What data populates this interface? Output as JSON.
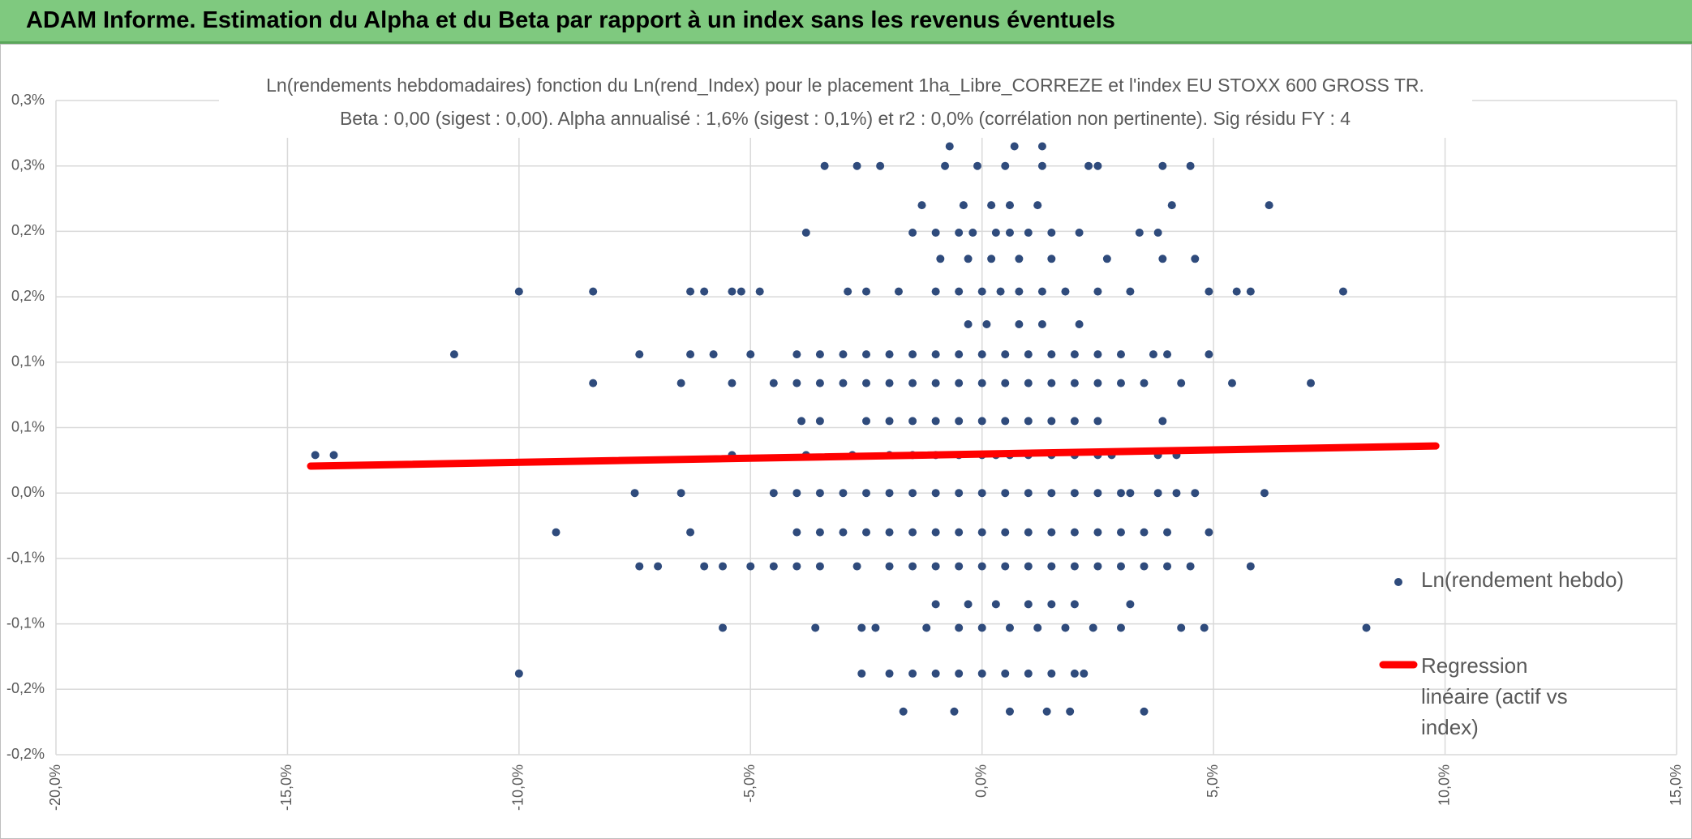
{
  "header": {
    "title": "ADAM Informe. Estimation du Alpha et du Beta par rapport à un index sans les revenus éventuels"
  },
  "chart_data": {
    "type": "scatter",
    "title": "Ln(rendements hebdomadaires) fonction du Ln(rend_Index) pour le placement 1ha_Libre_CORREZE et l'index EU STOXX 600 GROSS TR.",
    "subtitle": "Beta : 0,00 (sigest : 0,00). Alpha annualisé : 1,6% (sigest : 0,1%) et r2 : 0,0% (corrélation non pertinente). Sig résidu FY : 4",
    "xlim": [
      -20,
      15
    ],
    "xticks": [
      {
        "value": -20,
        "label": "-20,0%"
      },
      {
        "value": -15,
        "label": "-15,0%"
      },
      {
        "value": -10,
        "label": "-10,0%"
      },
      {
        "value": -5,
        "label": "-5,0%"
      },
      {
        "value": 0,
        "label": "0,0%"
      },
      {
        "value": 5,
        "label": "5,0%"
      },
      {
        "value": 10,
        "label": "10,0%"
      },
      {
        "value": 15,
        "label": "15,0%"
      }
    ],
    "ylim": [
      -0.2,
      0.3
    ],
    "yticks": [
      {
        "value": 0.3,
        "label": "0,3%"
      },
      {
        "value": 0.25,
        "label": "0,3%"
      },
      {
        "value": 0.2,
        "label": "0,2%"
      },
      {
        "value": 0.15,
        "label": "0,2%"
      },
      {
        "value": 0.1,
        "label": "0,1%"
      },
      {
        "value": 0.05,
        "label": "0,1%"
      },
      {
        "value": 0,
        "label": "0,0%"
      },
      {
        "value": -0.05,
        "label": "-0,1%"
      },
      {
        "value": -0.1,
        "label": "-0,1%"
      },
      {
        "value": -0.15,
        "label": "-0,2%"
      },
      {
        "value": -0.2,
        "label": "-0,2%"
      }
    ],
    "grid": true,
    "legend": "right",
    "series": [
      {
        "name": "Ln(rendement hebdo)",
        "color": "#2f4b7c",
        "type": "scatter",
        "x": [
          -7.5,
          -6.5,
          -4.5,
          -4,
          -3.5,
          -3,
          -2.5,
          -2,
          -1.5,
          -1,
          -0.5,
          0,
          0.5,
          1,
          1.5,
          2,
          2.5,
          3,
          3.2,
          3.8,
          4.2,
          4.6,
          6.1,
          -14.4,
          -14,
          -5.4,
          -3.8,
          -2.8,
          -2,
          -1.5,
          -1,
          -0.5,
          0,
          0.3,
          0.6,
          1,
          1.5,
          2,
          2.5,
          2.8,
          3.8,
          4.2,
          -9.2,
          -6.3,
          -4,
          -3.5,
          -3,
          -2.5,
          -2,
          -1.5,
          -1,
          -0.5,
          0,
          0.5,
          1,
          1.5,
          2,
          2.5,
          3,
          3.5,
          4,
          4.9,
          -3.9,
          -3.5,
          -2.5,
          -2,
          -1.5,
          -1,
          -0.5,
          0,
          0.5,
          1,
          1.5,
          2,
          2.5,
          3.9,
          -8.4,
          -6.5,
          -5.4,
          -4.5,
          -4,
          -3.5,
          -3,
          -2.5,
          -2,
          -1.5,
          -1,
          -0.5,
          0,
          0.5,
          1,
          1.5,
          2,
          2.5,
          3,
          3.5,
          4.3,
          5.4,
          7.1,
          -7.4,
          -7,
          -6,
          -5.6,
          -5,
          -4.5,
          -4,
          -3.5,
          -2.7,
          -2,
          -1.5,
          -1,
          -0.5,
          0,
          0.5,
          1,
          1.5,
          2,
          2.5,
          3,
          3.5,
          4,
          4.5,
          5.8,
          -11.4,
          -7.4,
          -6.3,
          -5.8,
          -5,
          -4,
          -3.5,
          -3,
          -2.5,
          -2,
          -1.5,
          -1,
          -0.5,
          0,
          0.5,
          1,
          1.5,
          2,
          2.5,
          3,
          3.7,
          4,
          4.9,
          -1,
          -0.3,
          0.3,
          1,
          1.5,
          2,
          3.2,
          -0.3,
          0.1,
          0.8,
          1.3,
          2.1,
          -5.6,
          -3.6,
          -2.6,
          -2.3,
          -1.2,
          -0.5,
          0,
          0.6,
          1.2,
          1.8,
          2.4,
          3,
          4.3,
          4.8,
          8.3,
          -10,
          -8.4,
          -6.3,
          -6,
          -5.4,
          -5.2,
          -4.8,
          -2.9,
          -2.5,
          -1.8,
          -1,
          -0.5,
          0,
          0.4,
          0.8,
          1.3,
          1.8,
          2.5,
          3.2,
          4.9,
          5.5,
          5.8,
          7.8,
          -10,
          -2.6,
          -2,
          -1.5,
          -1,
          -0.5,
          0,
          0.5,
          1,
          1.5,
          2,
          2.2,
          -0.9,
          -0.3,
          0.2,
          0.8,
          1.5,
          2.7,
          3.9,
          4.6,
          -3.8,
          -1.5,
          -1,
          -0.5,
          -0.2,
          0.3,
          0.6,
          1,
          1.5,
          2.1,
          3.4,
          3.8,
          -1.3,
          -0.4,
          0.2,
          0.6,
          1.2,
          4.1,
          6.2,
          -3.4,
          -2.7,
          -2.2,
          -0.8,
          -0.1,
          0.5,
          1.3,
          2.3,
          2.5,
          3.9,
          4.5,
          -0.7,
          0.7,
          1.3,
          -1.7,
          -0.6,
          0.6,
          1.4,
          1.9,
          3.5
        ],
        "values": [
          0,
          0,
          0,
          0,
          0,
          0,
          0,
          0,
          0,
          0,
          0,
          0,
          0,
          0,
          0,
          0,
          0,
          0,
          0,
          0,
          0,
          0,
          0,
          0.029,
          0.029,
          0.029,
          0.029,
          0.029,
          0.029,
          0.029,
          0.029,
          0.029,
          0.029,
          0.029,
          0.029,
          0.029,
          0.029,
          0.029,
          0.029,
          0.029,
          0.029,
          0.029,
          -0.03,
          -0.03,
          -0.03,
          -0.03,
          -0.03,
          -0.03,
          -0.03,
          -0.03,
          -0.03,
          -0.03,
          -0.03,
          -0.03,
          -0.03,
          -0.03,
          -0.03,
          -0.03,
          -0.03,
          -0.03,
          -0.03,
          -0.03,
          0.055,
          0.055,
          0.055,
          0.055,
          0.055,
          0.055,
          0.055,
          0.055,
          0.055,
          0.055,
          0.055,
          0.055,
          0.055,
          0.055,
          0.084,
          0.084,
          0.084,
          0.084,
          0.084,
          0.084,
          0.084,
          0.084,
          0.084,
          0.084,
          0.084,
          0.084,
          0.084,
          0.084,
          0.084,
          0.084,
          0.084,
          0.084,
          0.084,
          0.084,
          0.084,
          0.084,
          0.084,
          -0.056,
          -0.056,
          -0.056,
          -0.056,
          -0.056,
          -0.056,
          -0.056,
          -0.056,
          -0.056,
          -0.056,
          -0.056,
          -0.056,
          -0.056,
          -0.056,
          -0.056,
          -0.056,
          -0.056,
          -0.056,
          -0.056,
          -0.056,
          -0.056,
          -0.056,
          -0.056,
          -0.056,
          0.106,
          0.106,
          0.106,
          0.106,
          0.106,
          0.106,
          0.106,
          0.106,
          0.106,
          0.106,
          0.106,
          0.106,
          0.106,
          0.106,
          0.106,
          0.106,
          0.106,
          0.106,
          0.106,
          0.106,
          0.106,
          0.106,
          0.106,
          -0.085,
          -0.085,
          -0.085,
          -0.085,
          -0.085,
          -0.085,
          -0.085,
          0.129,
          0.129,
          0.129,
          0.129,
          0.129,
          -0.103,
          -0.103,
          -0.103,
          -0.103,
          -0.103,
          -0.103,
          -0.103,
          -0.103,
          -0.103,
          -0.103,
          -0.103,
          -0.103,
          -0.103,
          -0.103,
          -0.103,
          0.154,
          0.154,
          0.154,
          0.154,
          0.154,
          0.154,
          0.154,
          0.154,
          0.154,
          0.154,
          0.154,
          0.154,
          0.154,
          0.154,
          0.154,
          0.154,
          0.154,
          0.154,
          0.154,
          0.154,
          0.154,
          0.154,
          0.154,
          -0.138,
          -0.138,
          -0.138,
          -0.138,
          -0.138,
          -0.138,
          -0.138,
          -0.138,
          -0.138,
          -0.138,
          -0.138,
          -0.138,
          0.179,
          0.179,
          0.179,
          0.179,
          0.179,
          0.179,
          0.179,
          0.179,
          0.199,
          0.199,
          0.199,
          0.199,
          0.199,
          0.199,
          0.199,
          0.199,
          0.199,
          0.199,
          0.199,
          0.199,
          0.22,
          0.22,
          0.22,
          0.22,
          0.22,
          0.22,
          0.22,
          0.25,
          0.25,
          0.25,
          0.25,
          0.25,
          0.25,
          0.25,
          0.25,
          0.25,
          0.25,
          0.25,
          0.265,
          0.265,
          0.265,
          -0.167,
          -0.167,
          -0.167,
          -0.167,
          -0.167,
          -0.167
        ]
      },
      {
        "name": "Regression linéaire (actif vs index)",
        "color": "#ff0000",
        "type": "line",
        "x": [
          -14.5,
          9.8
        ],
        "values": [
          0.0206,
          0.036
        ]
      }
    ]
  }
}
